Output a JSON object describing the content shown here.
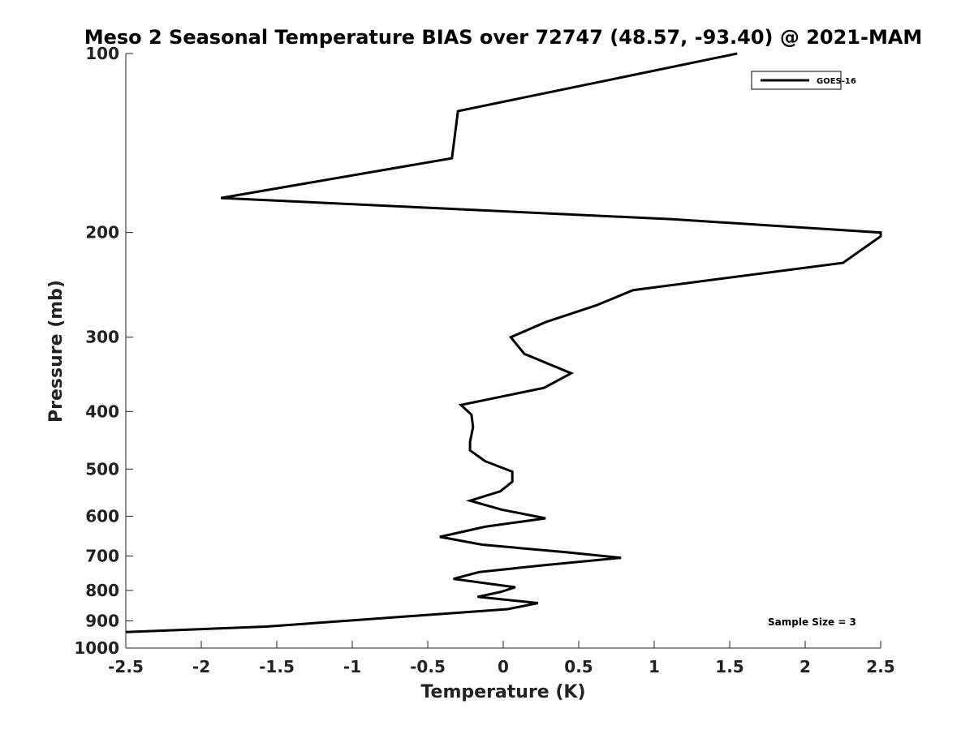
{
  "chart_data": {
    "type": "line",
    "title": "Meso 2 Seasonal Temperature BIAS over 72747 (48.57, -93.40) @ 2021-MAM",
    "xlabel": "Temperature (K)",
    "ylabel": "Pressure (mb)",
    "xlim": [
      -2.5,
      2.5
    ],
    "ylim": [
      1000,
      100
    ],
    "y_scale": "log",
    "y_inverted": true,
    "grid": false,
    "legend_position": "top-right",
    "x_ticks": [
      "-2.5",
      "-2",
      "-1.5",
      "-1",
      "-0.5",
      "0",
      "0.5",
      "1",
      "1.5",
      "2",
      "2.5"
    ],
    "y_ticks": [
      "100",
      "200",
      "300",
      "400",
      "500",
      "600",
      "700",
      "800",
      "900",
      "1000"
    ],
    "series": [
      {
        "name": "GOES-16",
        "color": "#000000",
        "points": [
          [
            1.55,
            100
          ],
          [
            -0.3,
            125
          ],
          [
            -0.34,
            150
          ],
          [
            -1.87,
            175
          ],
          [
            1.12,
            190
          ],
          [
            2.5,
            200
          ],
          [
            2.5,
            203
          ],
          [
            2.25,
            225
          ],
          [
            0.86,
            250
          ],
          [
            0.62,
            265
          ],
          [
            0.28,
            283
          ],
          [
            0.05,
            300
          ],
          [
            0.14,
            320
          ],
          [
            0.45,
            345
          ],
          [
            0.27,
            365
          ],
          [
            -0.28,
            390
          ],
          [
            -0.21,
            405
          ],
          [
            -0.2,
            425
          ],
          [
            -0.22,
            450
          ],
          [
            -0.22,
            465
          ],
          [
            -0.12,
            485
          ],
          [
            0.06,
            505
          ],
          [
            0.06,
            525
          ],
          [
            -0.02,
            545
          ],
          [
            -0.22,
            565
          ],
          [
            -0.01,
            585
          ],
          [
            0.28,
            605
          ],
          [
            -0.12,
            625
          ],
          [
            -0.42,
            650
          ],
          [
            -0.14,
            670
          ],
          [
            0.42,
            690
          ],
          [
            0.78,
            705
          ],
          [
            0.28,
            725
          ],
          [
            -0.16,
            745
          ],
          [
            -0.33,
            765
          ],
          [
            0.08,
            790
          ],
          [
            -0.02,
            805
          ],
          [
            -0.17,
            820
          ],
          [
            0.23,
            840
          ],
          [
            0.03,
            860
          ],
          [
            -1.57,
            920
          ],
          [
            -2.5,
            940
          ]
        ]
      }
    ],
    "annotations": [
      "Sample Size = 3"
    ]
  }
}
